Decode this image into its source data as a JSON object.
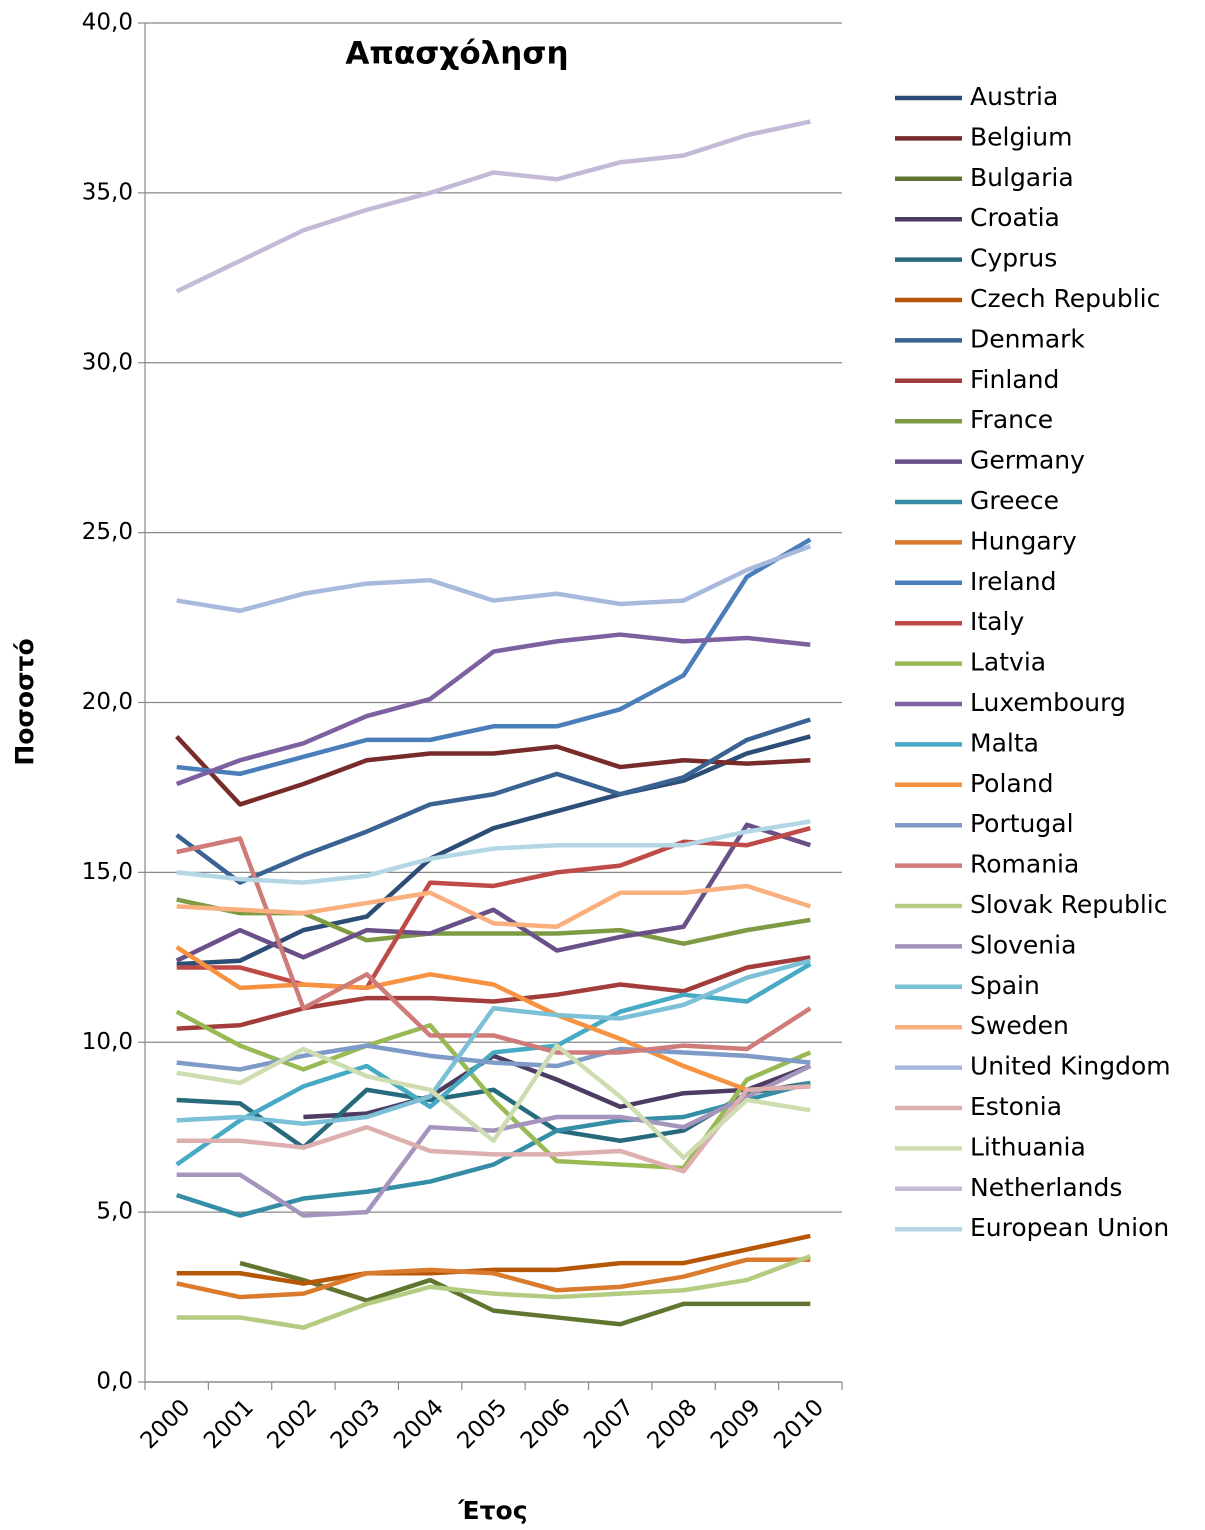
{
  "chart_data": {
    "type": "line",
    "title": "Απασχόληση",
    "x_label": "Έτος",
    "y_label": "Ποσοστό",
    "categories": [
      "2000",
      "2001",
      "2002",
      "2003",
      "2004",
      "2005",
      "2006",
      "2007",
      "2008",
      "2009",
      "2010"
    ],
    "ylim": [
      0,
      40
    ],
    "yticks": [
      {
        "value": 0,
        "label": "0,0"
      },
      {
        "value": 5,
        "label": "5,0"
      },
      {
        "value": 10,
        "label": "10,0"
      },
      {
        "value": 15,
        "label": "15,0"
      },
      {
        "value": 20,
        "label": "20,0"
      },
      {
        "value": 25,
        "label": "25,0"
      },
      {
        "value": 30,
        "label": "30,0"
      },
      {
        "value": 35,
        "label": "35,0"
      },
      {
        "value": 40,
        "label": "40,0"
      }
    ],
    "grid": true,
    "legend": "right",
    "series": [
      {
        "name": "Austria",
        "color": "#2C4D75",
        "values": [
          12.3,
          12.4,
          13.3,
          13.7,
          15.4,
          16.3,
          16.8,
          17.3,
          17.7,
          18.5,
          19.0
        ]
      },
      {
        "name": "Belgium",
        "color": "#772C2A",
        "values": [
          19.0,
          17.0,
          17.6,
          18.3,
          18.5,
          18.5,
          18.7,
          18.1,
          18.3,
          18.2,
          18.3
        ]
      },
      {
        "name": "Bulgaria",
        "color": "#5F7530",
        "values": [
          null,
          3.5,
          3.0,
          2.4,
          3.0,
          2.1,
          1.9,
          1.7,
          2.3,
          2.3,
          2.3
        ]
      },
      {
        "name": "Croatia",
        "color": "#4D3B62",
        "values": [
          null,
          null,
          7.8,
          7.9,
          8.4,
          9.6,
          8.9,
          8.1,
          8.5,
          8.6,
          9.3
        ]
      },
      {
        "name": "Cyprus",
        "color": "#276A7C",
        "values": [
          8.3,
          8.2,
          6.9,
          8.6,
          8.3,
          8.6,
          7.4,
          7.1,
          7.4,
          8.5,
          8.8
        ]
      },
      {
        "name": "Czech Republic",
        "color": "#B65708",
        "values": [
          3.2,
          3.2,
          2.9,
          3.2,
          3.2,
          3.3,
          3.3,
          3.5,
          3.5,
          3.9,
          4.3
        ]
      },
      {
        "name": "Denmark",
        "color": "#3A6394",
        "values": [
          16.1,
          14.7,
          15.5,
          16.2,
          17.0,
          17.3,
          17.9,
          17.3,
          17.8,
          18.9,
          19.5
        ]
      },
      {
        "name": "Finland",
        "color": "#A33D3B",
        "values": [
          10.4,
          10.5,
          11.0,
          11.3,
          11.3,
          11.2,
          11.4,
          11.7,
          11.5,
          12.2,
          12.5
        ]
      },
      {
        "name": "France",
        "color": "#7E9B43",
        "values": [
          14.2,
          13.8,
          13.8,
          13.0,
          13.2,
          13.2,
          13.2,
          13.3,
          12.9,
          13.3,
          13.6
        ]
      },
      {
        "name": "Germany",
        "color": "#6A5088",
        "values": [
          12.4,
          13.3,
          12.5,
          13.3,
          13.2,
          13.9,
          12.7,
          13.1,
          13.4,
          16.4,
          15.8
        ]
      },
      {
        "name": "Greece",
        "color": "#358EA5",
        "values": [
          5.5,
          4.9,
          5.4,
          5.6,
          5.9,
          6.4,
          7.4,
          7.7,
          7.8,
          8.3,
          8.8
        ]
      },
      {
        "name": "Hungary",
        "color": "#DA7A2C",
        "values": [
          2.9,
          2.5,
          2.6,
          3.2,
          3.3,
          3.2,
          2.7,
          2.8,
          3.1,
          3.6,
          3.6
        ]
      },
      {
        "name": "Ireland",
        "color": "#4A7EBB",
        "values": [
          18.1,
          17.9,
          18.4,
          18.9,
          18.9,
          19.3,
          19.3,
          19.8,
          20.8,
          23.7,
          24.8
        ]
      },
      {
        "name": "Italy",
        "color": "#BE4B48",
        "values": [
          12.2,
          12.2,
          11.7,
          11.6,
          14.7,
          14.6,
          15.0,
          15.2,
          15.9,
          15.8,
          16.3
        ]
      },
      {
        "name": "Latvia",
        "color": "#98B954",
        "values": [
          10.9,
          9.9,
          9.2,
          9.9,
          10.5,
          8.3,
          6.5,
          6.4,
          6.3,
          8.9,
          9.7
        ]
      },
      {
        "name": "Luxembourg",
        "color": "#7D60A0",
        "values": [
          17.6,
          18.3,
          18.8,
          19.6,
          20.1,
          21.5,
          21.8,
          22.0,
          21.8,
          21.9,
          21.7
        ]
      },
      {
        "name": "Malta",
        "color": "#46AAC5",
        "values": [
          6.4,
          7.7,
          8.7,
          9.3,
          8.1,
          9.7,
          9.9,
          10.9,
          11.4,
          11.2,
          12.3
        ]
      },
      {
        "name": "Poland",
        "color": "#F69240",
        "values": [
          12.8,
          11.6,
          11.7,
          11.6,
          12.0,
          11.7,
          10.8,
          10.1,
          9.3,
          8.6,
          8.7
        ]
      },
      {
        "name": "Portugal",
        "color": "#7E9BC8",
        "values": [
          9.4,
          9.2,
          9.6,
          9.9,
          9.6,
          9.4,
          9.3,
          9.8,
          9.7,
          9.6,
          9.4
        ]
      },
      {
        "name": "Romania",
        "color": "#CF7B79",
        "values": [
          15.6,
          16.0,
          11.0,
          12.0,
          10.2,
          10.2,
          9.7,
          9.7,
          9.9,
          9.8,
          11.0
        ]
      },
      {
        "name": "Slovak Republic",
        "color": "#B3CC82",
        "values": [
          1.9,
          1.9,
          1.6,
          2.3,
          2.8,
          2.6,
          2.5,
          2.6,
          2.7,
          3.0,
          3.7
        ]
      },
      {
        "name": "Slovenia",
        "color": "#A595BD",
        "values": [
          6.1,
          6.1,
          4.9,
          5.0,
          7.5,
          7.4,
          7.8,
          7.8,
          7.5,
          8.4,
          9.3
        ]
      },
      {
        "name": "Spain",
        "color": "#7BC0D6",
        "values": [
          7.7,
          7.8,
          7.6,
          7.8,
          8.4,
          11.0,
          10.8,
          10.7,
          11.1,
          11.9,
          12.4
        ]
      },
      {
        "name": "Sweden",
        "color": "#F9B07E",
        "values": [
          14.0,
          13.9,
          13.8,
          14.1,
          14.4,
          13.5,
          13.4,
          14.4,
          14.4,
          14.6,
          14.0
        ]
      },
      {
        "name": "United Kingdom",
        "color": "#A7B9DC",
        "values": [
          23.0,
          22.7,
          23.2,
          23.5,
          23.6,
          23.0,
          23.2,
          22.9,
          23.0,
          23.9,
          24.6
        ]
      },
      {
        "name": "Estonia",
        "color": "#DDB0AF",
        "values": [
          7.1,
          7.1,
          6.9,
          7.5,
          6.8,
          6.7,
          6.7,
          6.8,
          6.2,
          8.6,
          8.7
        ]
      },
      {
        "name": "Lithuania",
        "color": "#CDDDB1",
        "values": [
          9.1,
          8.8,
          9.8,
          9.0,
          8.6,
          7.1,
          9.9,
          8.4,
          6.6,
          8.3,
          8.0
        ]
      },
      {
        "name": "Netherlands",
        "color": "#C4B9D6",
        "values": [
          32.1,
          33.0,
          33.9,
          34.5,
          35.0,
          35.6,
          35.4,
          35.9,
          36.1,
          36.7,
          37.1
        ]
      },
      {
        "name": "European Union",
        "color": "#B4D7E5",
        "values": [
          15.0,
          14.8,
          14.7,
          14.9,
          15.4,
          15.7,
          15.8,
          15.8,
          15.8,
          16.2,
          16.5
        ]
      }
    ]
  }
}
